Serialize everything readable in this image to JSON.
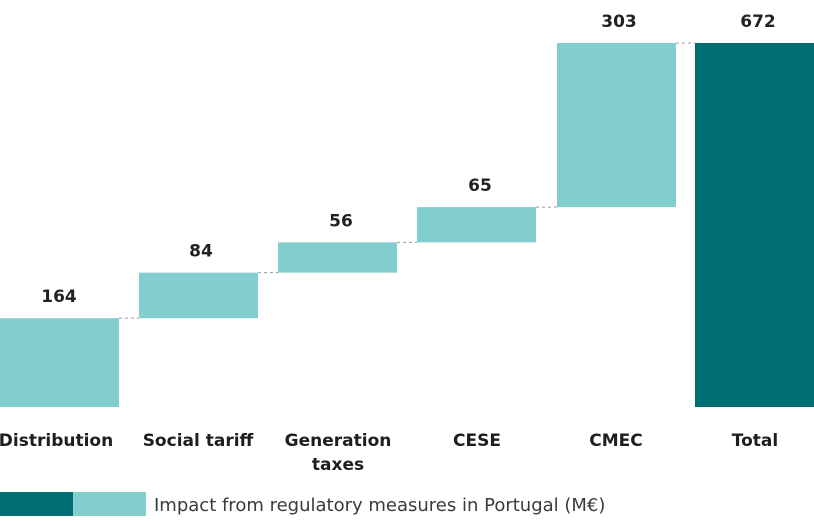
{
  "chart_data": {
    "type": "waterfall",
    "title": "",
    "xlabel": "",
    "ylabel": "",
    "ylim": [
      0,
      672
    ],
    "grid": false,
    "categories": [
      [
        "Distribution"
      ],
      [
        "Social tariff"
      ],
      [
        "Generation",
        "taxes"
      ],
      [
        "CESE"
      ],
      [
        "CMEC"
      ],
      [
        "Total"
      ]
    ],
    "values": [
      164,
      84,
      56,
      65,
      303,
      672
    ],
    "value_labels": [
      "164",
      "84",
      "56",
      "65",
      "303",
      "672"
    ],
    "total_index": 5,
    "colors": {
      "increment": "#82cdcd",
      "total": "#006e75"
    },
    "legend": {
      "position": "bottom-left",
      "label": "Impact from regulatory measures in Portugal (M€)",
      "swatches": [
        "#006e75",
        "#82cdcd"
      ]
    }
  }
}
